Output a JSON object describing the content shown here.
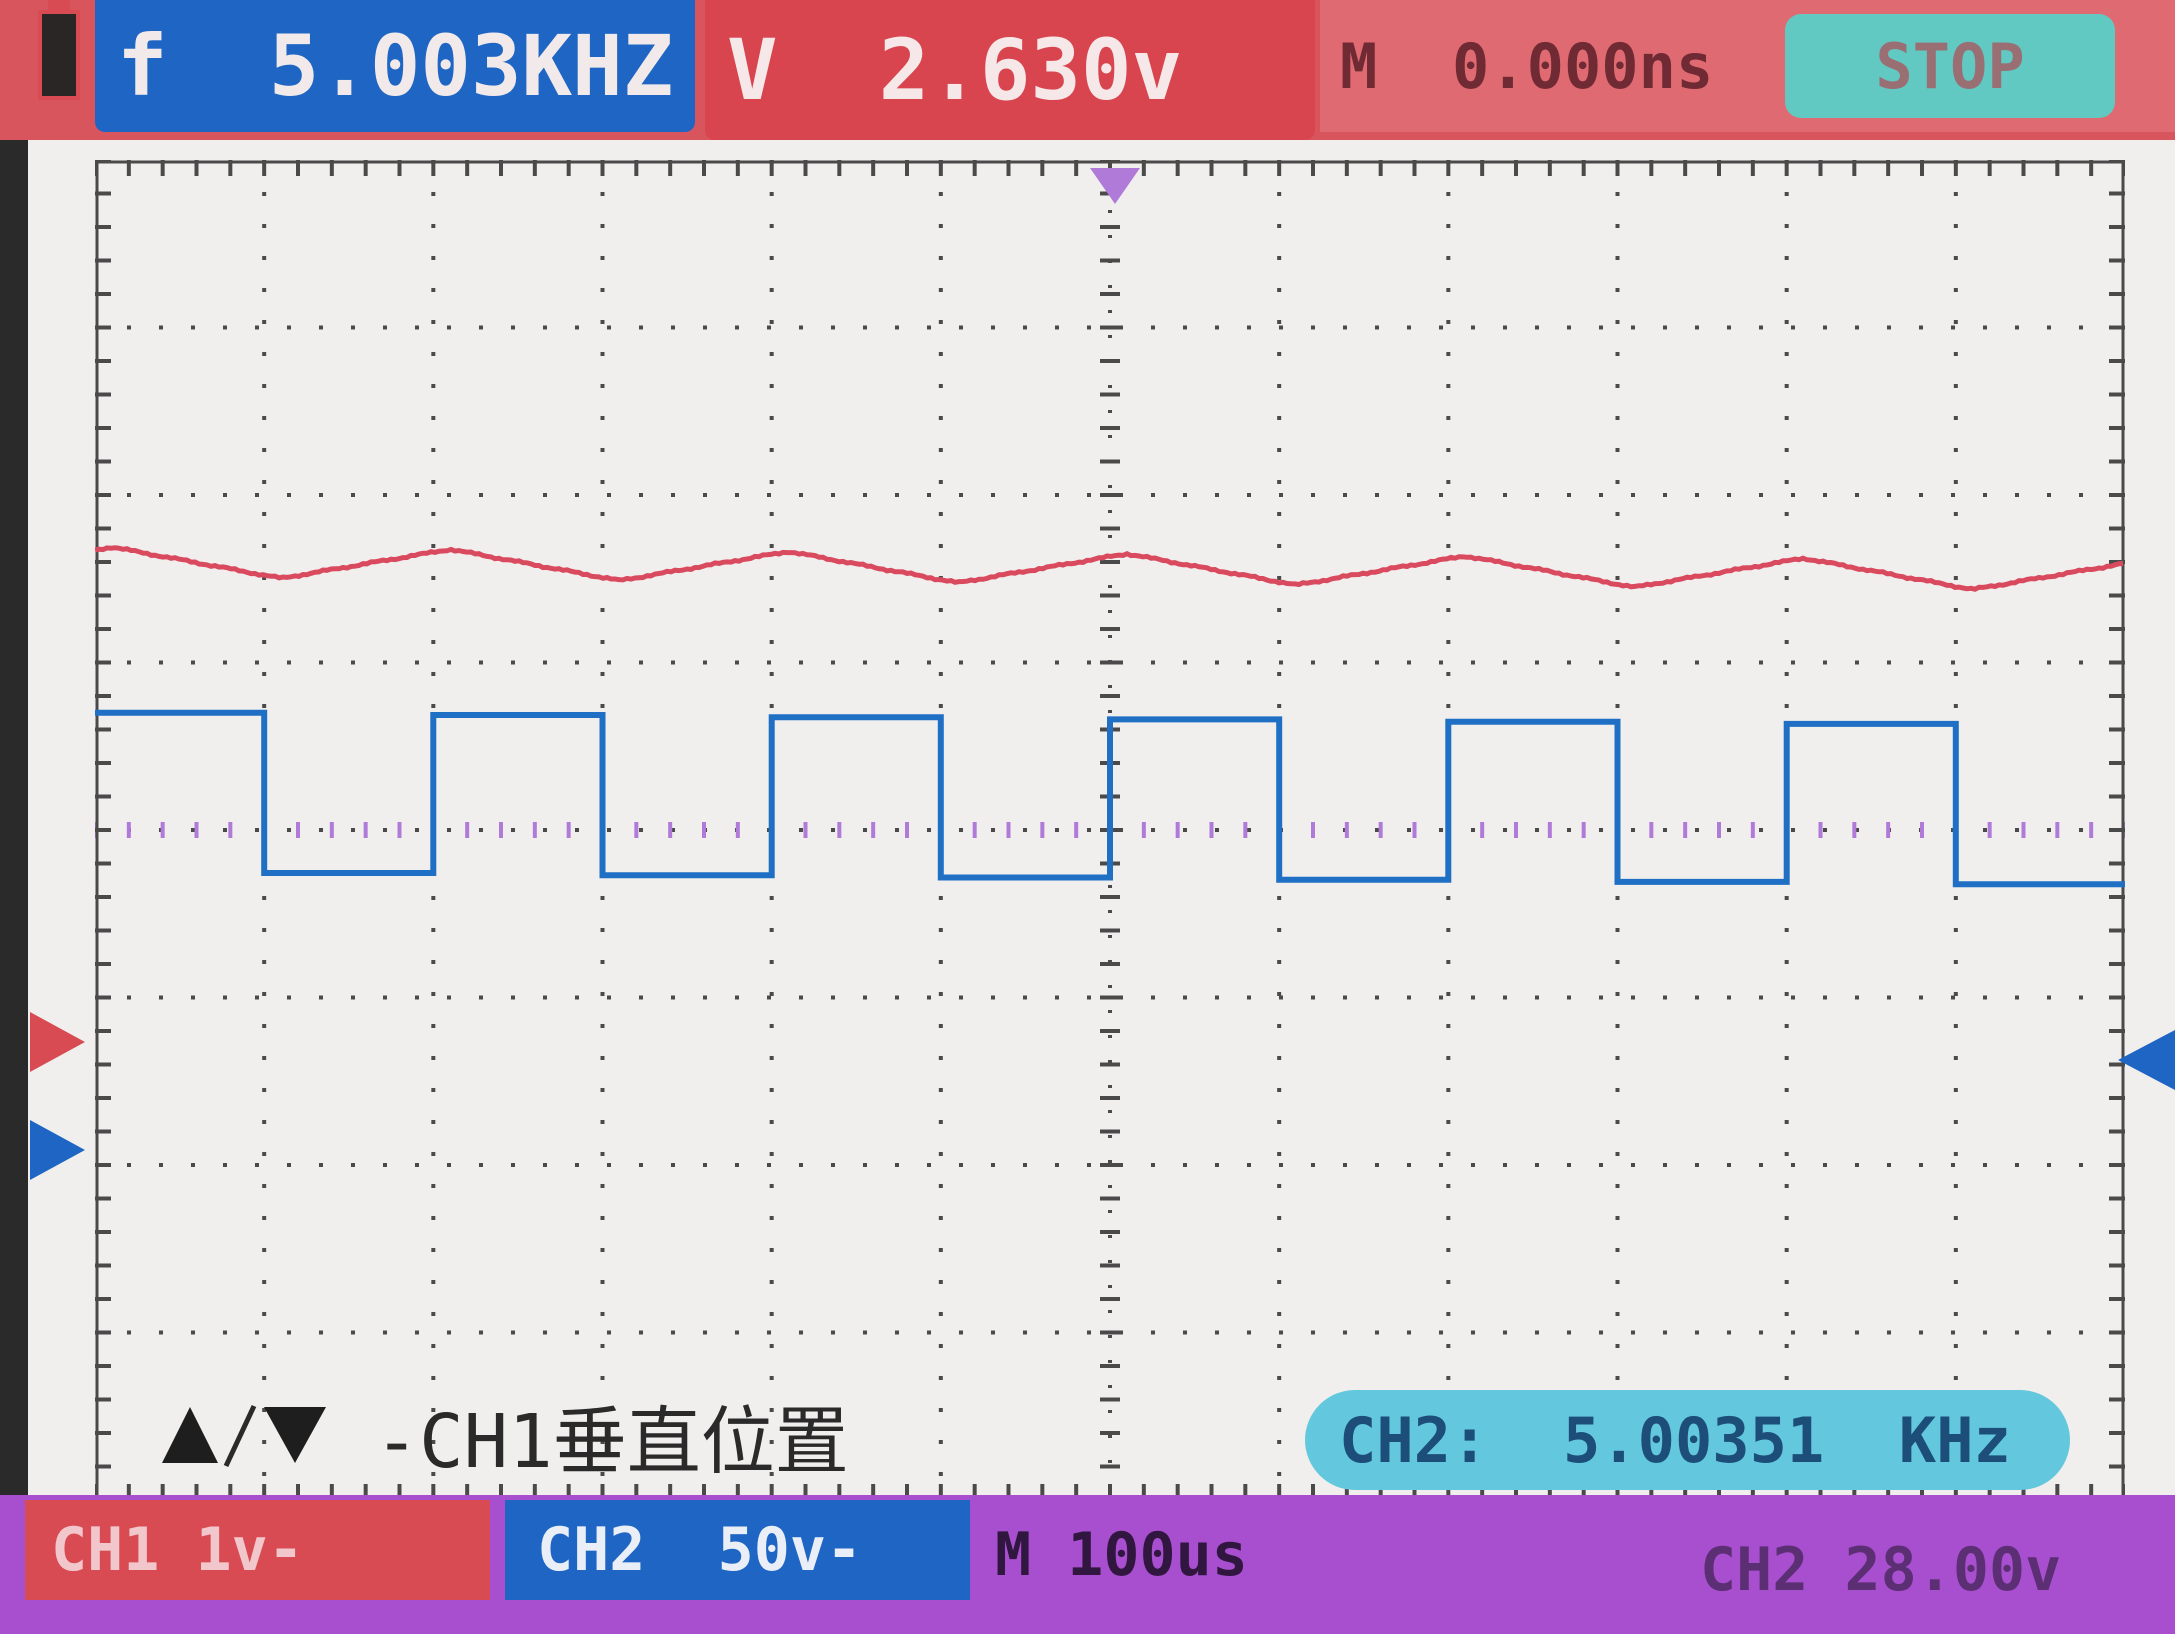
{
  "header": {
    "freq_label": "f  5.003KHZ",
    "volt_label": "V  2.630v",
    "time_label": "M  0.000ns",
    "stop_label": "STOP"
  },
  "hint": {
    "label": " -CH1垂直位置"
  },
  "badges": {
    "ch2_freq": "CH2:  5.00351  KHz"
  },
  "footer": {
    "ch1_label": "CH1 1v-",
    "ch2_label": "CH2  50v-",
    "timebase_label": "M 100us",
    "trigger_label": "CH2 28.00v"
  },
  "colors": {
    "ch1": "#d94a5e",
    "ch2": "#1f6fc4",
    "grid": "#4a4a4a",
    "trigger_marker": "#b07ad8"
  },
  "icons": {
    "up_arrow": "up-triangle-icon",
    "down_arrow": "down-triangle-icon"
  },
  "chart_data": {
    "type": "line",
    "x_divisions": 12,
    "y_divisions": 8,
    "timebase": "100us/div",
    "series": [
      {
        "name": "CH1",
        "volts_per_div": "1v",
        "shape": "triangle-ripple",
        "period_div": 2.0,
        "peak_to_peak_div": 0.18
      },
      {
        "name": "CH2",
        "volts_per_div": "50v",
        "shape": "square",
        "period_div": 2.0,
        "duty": 0.5,
        "high_div": 4.7,
        "low_div": 3.75
      }
    ]
  }
}
